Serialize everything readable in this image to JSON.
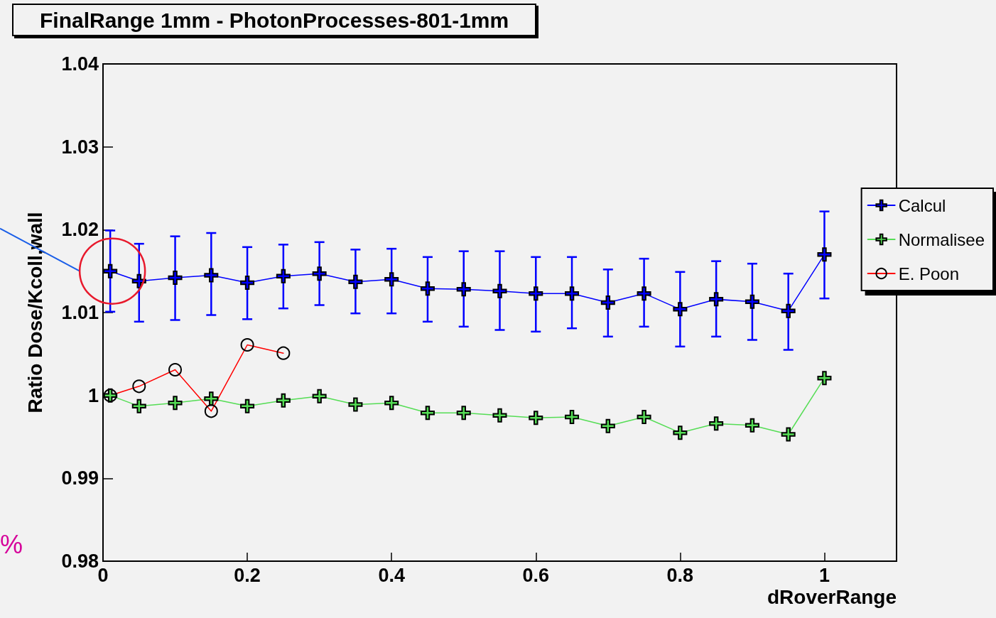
{
  "chart_data": {
    "type": "line",
    "title": "FinalRange 1mm - PhotonProcesses-801-1mm",
    "xlabel": "dRoverRange",
    "ylabel": "Ratio Dose/Kcoll,wall",
    "xlim": [
      0,
      1.1
    ],
    "xticks": [
      0,
      0.2,
      0.4,
      0.6,
      0.8,
      1
    ],
    "ylim": [
      0.98,
      1.04
    ],
    "yticks": [
      0.98,
      0.99,
      1,
      1.01,
      1.02,
      1.03,
      1.04
    ],
    "grid": false,
    "legend": "right",
    "annotations": [
      "%"
    ],
    "series": [
      {
        "name": "Calcul",
        "color": "#0000ff",
        "marker": "cross",
        "x": [
          0.01,
          0.05,
          0.1,
          0.15,
          0.2,
          0.25,
          0.3,
          0.35,
          0.4,
          0.45,
          0.5,
          0.55,
          0.6,
          0.65,
          0.7,
          0.75,
          0.8,
          0.85,
          0.9,
          0.95,
          1.0
        ],
        "values": [
          1.015,
          1.0138,
          1.0142,
          1.0145,
          1.0136,
          1.0144,
          1.0147,
          1.0137,
          1.014,
          1.0129,
          1.0128,
          1.0126,
          1.0123,
          1.0123,
          1.0112,
          1.0123,
          1.0104,
          1.0116,
          1.0113,
          1.0102,
          1.017
        ],
        "errors": [
          [
            1.0101,
            1.0199
          ],
          [
            1.0089,
            1.0183
          ],
          [
            1.0091,
            1.0192
          ],
          [
            1.0097,
            1.0196
          ],
          [
            1.0092,
            1.0179
          ],
          [
            1.0105,
            1.0182
          ],
          [
            1.0109,
            1.0185
          ],
          [
            1.0099,
            1.0176
          ],
          [
            1.0099,
            1.0177
          ],
          [
            1.0089,
            1.0167
          ],
          [
            1.0083,
            1.0174
          ],
          [
            1.0079,
            1.0174
          ],
          [
            1.0077,
            1.0167
          ],
          [
            1.0081,
            1.0167
          ],
          [
            1.0071,
            1.0152
          ],
          [
            1.0083,
            1.0165
          ],
          [
            1.0059,
            1.0149
          ],
          [
            1.0071,
            1.0162
          ],
          [
            1.0067,
            1.0159
          ],
          [
            1.0055,
            1.0147
          ],
          [
            1.0117,
            1.0222
          ]
        ]
      },
      {
        "name": "Normalisee",
        "color": "#55dd55",
        "marker": "cross",
        "x": [
          0.01,
          0.05,
          0.1,
          0.15,
          0.2,
          0.25,
          0.3,
          0.35,
          0.4,
          0.45,
          0.5,
          0.55,
          0.6,
          0.65,
          0.7,
          0.75,
          0.8,
          0.85,
          0.9,
          0.95,
          1.0
        ],
        "values": [
          1.0,
          0.9987,
          0.9991,
          0.9996,
          0.9987,
          0.9994,
          0.9999,
          0.9989,
          0.9991,
          0.9979,
          0.9979,
          0.9976,
          0.9973,
          0.9974,
          0.9963,
          0.9974,
          0.9955,
          0.9966,
          0.9964,
          0.9953,
          1.0021
        ]
      },
      {
        "name": "E. Poon",
        "color": "#ff0000",
        "marker": "circle",
        "x": [
          0.01,
          0.05,
          0.1,
          0.15,
          0.2,
          0.25
        ],
        "values": [
          1.0,
          1.0011,
          1.0031,
          0.9981,
          1.0061,
          1.0051
        ]
      }
    ]
  }
}
